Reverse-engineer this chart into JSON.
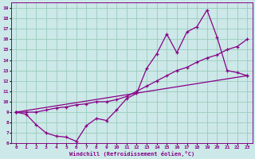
{
  "xlabel": "Windchill (Refroidissement éolien,°C)",
  "bg_color": "#cce8e8",
  "line_color": "#880088",
  "grid_color": "#99ccbb",
  "xlim": [
    -0.5,
    23.5
  ],
  "ylim": [
    6,
    19.5
  ],
  "xticks": [
    0,
    1,
    2,
    3,
    4,
    5,
    6,
    7,
    8,
    9,
    10,
    11,
    12,
    13,
    14,
    15,
    16,
    17,
    18,
    19,
    20,
    21,
    22,
    23
  ],
  "yticks": [
    6,
    7,
    8,
    9,
    10,
    11,
    12,
    13,
    14,
    15,
    16,
    17,
    18,
    19
  ],
  "line1_x": [
    0,
    1,
    2,
    3,
    4,
    5,
    6,
    7,
    8,
    9,
    10,
    11,
    12,
    13,
    14,
    15,
    16,
    17,
    18,
    19,
    20,
    21,
    22,
    23
  ],
  "line1_y": [
    9.0,
    8.8,
    7.8,
    7.0,
    6.7,
    6.6,
    6.2,
    7.7,
    8.4,
    8.2,
    9.2,
    10.3,
    10.8,
    13.2,
    14.6,
    16.5,
    14.7,
    16.7,
    17.2,
    18.8,
    16.2,
    13.0,
    12.8,
    12.5
  ],
  "line2_x": [
    0,
    1,
    2,
    3,
    4,
    5,
    6,
    7,
    8,
    9,
    10,
    11,
    12,
    13,
    14,
    15,
    16,
    17,
    18,
    19,
    20,
    21,
    22,
    23
  ],
  "line2_y": [
    9.0,
    9.0,
    9.0,
    9.2,
    9.4,
    9.5,
    9.7,
    9.8,
    10.0,
    10.0,
    10.2,
    10.5,
    11.0,
    11.5,
    12.0,
    12.5,
    13.0,
    13.3,
    13.8,
    14.2,
    14.5,
    15.0,
    15.3,
    16.0
  ],
  "line3_x": [
    0,
    23
  ],
  "line3_y": [
    9.0,
    12.5
  ]
}
